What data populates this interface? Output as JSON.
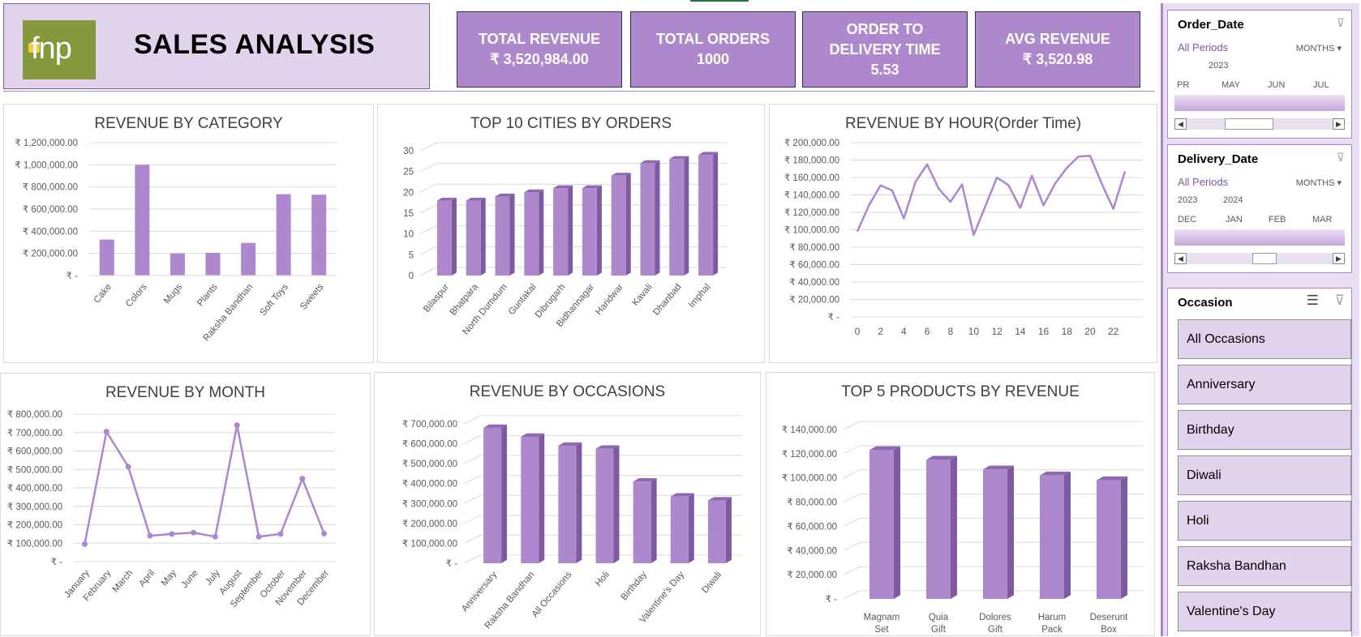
{
  "header": {
    "logo_text": "fnp",
    "title": "SALES ANALYSIS"
  },
  "kpis": [
    {
      "label": "TOTAL REVENUE",
      "value": "₹ 3,520,984.00"
    },
    {
      "label": "TOTAL ORDERS",
      "value": "1000"
    },
    {
      "label": "ORDER TO DELIVERY TIME",
      "value": "5.53"
    },
    {
      "label": "AVG REVENUE",
      "value": "₹ 3,520.98"
    }
  ],
  "colors": {
    "bar": "#ae88cc",
    "bar_side": "#7e5aa0",
    "bar_top": "#8e69b0",
    "line": "#ad86d1",
    "kpi": "#ae88cc",
    "header": "#e2d3ec"
  },
  "charts": {
    "category": {
      "title": "REVENUE BY CATEGORY"
    },
    "cities": {
      "title": "TOP 10 CITIES BY ORDERS"
    },
    "hour": {
      "title": "REVENUE BY HOUR(Order Time)"
    },
    "month": {
      "title": "REVENUE BY MONTH"
    },
    "occasions": {
      "title": "REVENUE BY OCCASIONS"
    },
    "products": {
      "title": "TOP  5 PRODUCTS BY REVENUE"
    }
  },
  "chart_data": [
    {
      "id": "category",
      "type": "bar",
      "title": "REVENUE BY CATEGORY",
      "categories": [
        "Cake",
        "Colors",
        "Mugs",
        "Plants",
        "Raksha Bandhan",
        "Soft Toys",
        "Sweets"
      ],
      "values": [
        325000,
        1000000,
        200000,
        205000,
        295000,
        735000,
        730000
      ],
      "ylim": [
        0,
        1200000
      ],
      "yticks": [
        "₹ -",
        "₹ 200,000.00",
        "₹ 400,000.00",
        "₹ 600,000.00",
        "₹ 800,000.00",
        "₹ 1,000,000.00",
        "₹ 1,200,000.00"
      ],
      "grid": true
    },
    {
      "id": "cities",
      "type": "bar",
      "title": "TOP 10 CITIES BY ORDERS",
      "categories": [
        "Bilaspur",
        "Bhatpara",
        "North Dumdum",
        "Guntakal",
        "Dibrugarh",
        "Bidhannagar",
        "Haridwar",
        "Kavali",
        "Dhanbad",
        "Imphal"
      ],
      "values": [
        18,
        18,
        19,
        20,
        21,
        21,
        24,
        27,
        28,
        29
      ],
      "ylim": [
        0,
        30
      ],
      "yticks": [
        "0",
        "5",
        "10",
        "15",
        "20",
        "25",
        "30"
      ],
      "grid": true
    },
    {
      "id": "hour",
      "type": "line",
      "title": "REVENUE BY HOUR(Order Time)",
      "x": [
        0,
        1,
        2,
        3,
        4,
        5,
        6,
        7,
        8,
        9,
        10,
        11,
        12,
        13,
        14,
        15,
        16,
        17,
        18,
        19,
        20,
        21,
        22,
        23
      ],
      "values": [
        98000,
        128000,
        151000,
        145000,
        113000,
        155000,
        175000,
        147000,
        132000,
        152000,
        94000,
        127000,
        160000,
        151000,
        125000,
        162000,
        128000,
        153000,
        171000,
        184000,
        185000,
        153000,
        124000,
        167000
      ],
      "ylim": [
        0,
        200000
      ],
      "xticks": [
        "0",
        "2",
        "4",
        "6",
        "8",
        "10",
        "12",
        "14",
        "16",
        "18",
        "20",
        "22"
      ],
      "yticks": [
        "₹ -",
        "₹ 20,000.00",
        "₹ 40,000.00",
        "₹ 60,000.00",
        "₹ 80,000.00",
        "₹ 100,000.00",
        "₹ 120,000.00",
        "₹ 140,000.00",
        "₹ 160,000.00",
        "₹ 180,000.00",
        "₹ 200,000.00"
      ],
      "grid": true
    },
    {
      "id": "month",
      "type": "line",
      "title": "REVENUE BY MONTH",
      "categories": [
        "January",
        "February",
        "March",
        "April",
        "May",
        "June",
        "July",
        "August",
        "September",
        "October",
        "November",
        "December"
      ],
      "values": [
        95000,
        705000,
        515000,
        140000,
        150000,
        157000,
        135000,
        740000,
        135000,
        150000,
        450000,
        152000
      ],
      "ylim": [
        0,
        800000
      ],
      "yticks": [
        "₹ -",
        "₹ 100,000.00",
        "₹ 200,000.00",
        "₹ 300,000.00",
        "₹ 400,000.00",
        "₹ 500,000.00",
        "₹ 600,000.00",
        "₹ 700,000.00",
        "₹ 800,000.00"
      ],
      "grid": true
    },
    {
      "id": "occasions",
      "type": "bar",
      "title": "REVENUE BY OCCASIONS",
      "categories": [
        "Anniversary",
        "Raksha Bandhan",
        "All Occasions",
        "Holi",
        "Birthday",
        "Valentine's Day",
        "Diwali"
      ],
      "values": [
        680000,
        635000,
        590000,
        575000,
        410000,
        335000,
        315000
      ],
      "ylim": [
        0,
        700000
      ],
      "yticks": [
        "₹ -",
        "₹ 100,000.00",
        "₹ 200,000.00",
        "₹ 300,000.00",
        "₹ 400,000.00",
        "₹ 500,000.00",
        "₹ 600,000.00",
        "₹ 700,000.00"
      ],
      "grid": true
    },
    {
      "id": "products",
      "type": "bar",
      "title": "TOP  5 PRODUCTS BY REVENUE",
      "categories": [
        "Magnam Set",
        "Quia Gift",
        "Dolores Gift",
        "Harum Pack",
        "Deserunt Box"
      ],
      "values": [
        123000,
        115000,
        107000,
        102000,
        98000
      ],
      "ylim": [
        0,
        140000
      ],
      "yticks": [
        "₹ -",
        "₹ 20,000.00",
        "₹ 40,000.00",
        "₹ 60,000.00",
        "₹ 80,000.00",
        "₹ 100,000.00",
        "₹ 120,000.00",
        "₹ 140,000.00"
      ],
      "grid": true
    }
  ],
  "slicers": {
    "order_date": {
      "title": "Order_Date",
      "all_periods": "All Periods",
      "unit": "MONTHS",
      "year": "2023",
      "months": [
        "PR",
        "MAY",
        "JUN",
        "JUL"
      ]
    },
    "delivery_date": {
      "title": "Delivery_Date",
      "all_periods": "All Periods",
      "unit": "MONTHS",
      "year1": "2023",
      "year2": "2024",
      "months": [
        "DEC",
        "JAN",
        "FEB",
        "MAR"
      ]
    },
    "occasion": {
      "title": "Occasion",
      "items": [
        "All Occasions",
        "Anniversary",
        "Birthday",
        "Diwali",
        "Holi",
        "Raksha Bandhan",
        "Valentine's Day"
      ]
    }
  }
}
